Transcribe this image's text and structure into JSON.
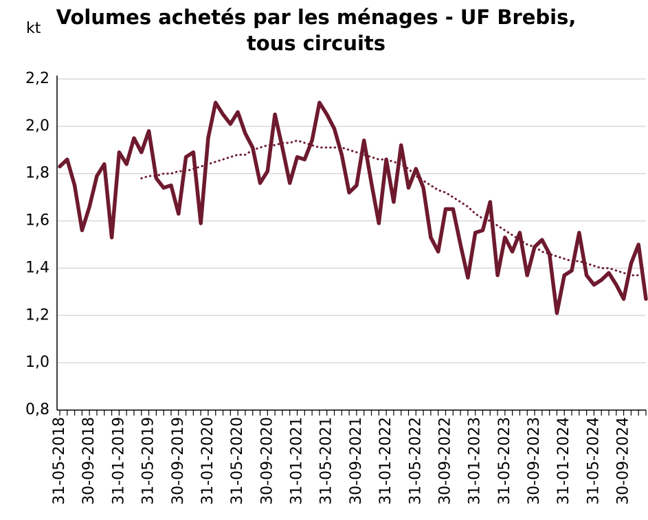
{
  "chart_data": {
    "type": "line",
    "title": "Volumes achetés par les ménages - UF Brebis, tous circuits",
    "y_label": "kt",
    "categories": [
      "31-05-2018",
      null,
      null,
      null,
      "30-09-2018",
      null,
      null,
      null,
      "31-01-2019",
      null,
      null,
      null,
      "31-05-2019",
      null,
      null,
      null,
      "30-09-2019",
      null,
      null,
      null,
      "31-01-2020",
      null,
      null,
      null,
      "31-05-2020",
      null,
      null,
      null,
      "30-09-2020",
      null,
      null,
      null,
      "31-01-2021",
      null,
      null,
      null,
      "31-05-2021",
      null,
      null,
      null,
      "30-09-2021",
      null,
      null,
      null,
      "31-01-2022",
      null,
      null,
      null,
      "31-05-2022",
      null,
      null,
      null,
      "30-09-2022",
      null,
      null,
      null,
      "31-01-2023",
      null,
      null,
      null,
      "31-05-2023",
      null,
      null,
      null,
      "30-09-2023",
      null,
      null,
      null,
      "31-01-2024",
      null,
      null,
      null,
      "31-05-2024",
      null,
      null,
      null,
      "30-09-2024",
      null,
      null,
      null
    ],
    "series": [
      {
        "color": "#6e1a2e",
        "style": "solid",
        "values": [
          1.83,
          1.86,
          1.75,
          1.56,
          1.66,
          1.79,
          1.84,
          1.53,
          1.89,
          1.84,
          1.95,
          1.89,
          1.98,
          1.78,
          1.74,
          1.75,
          1.63,
          1.87,
          1.89,
          1.59,
          1.95,
          2.1,
          2.05,
          2.01,
          2.06,
          1.97,
          1.91,
          1.76,
          1.81,
          2.05,
          1.91,
          1.76,
          1.87,
          1.86,
          1.94,
          2.1,
          2.05,
          1.99,
          1.88,
          1.72,
          1.75,
          1.94,
          1.76,
          1.59,
          1.86,
          1.68,
          1.92,
          1.74,
          1.82,
          1.74,
          1.53,
          1.47,
          1.65,
          1.65,
          1.5,
          1.36,
          1.55,
          1.56,
          1.68,
          1.37,
          1.53,
          1.47,
          1.55,
          1.37,
          1.49,
          1.52,
          1.46,
          1.21,
          1.37,
          1.39,
          1.55,
          1.37,
          1.33,
          1.35,
          1.38,
          1.33,
          1.27,
          1.42,
          1.5,
          1.27
        ]
      },
      {
        "color": "#6e1a2e",
        "style": "dotted",
        "values": [
          null,
          null,
          null,
          null,
          null,
          null,
          null,
          null,
          null,
          null,
          null,
          1.78,
          1.79,
          1.79,
          1.8,
          1.8,
          1.81,
          1.81,
          1.82,
          1.83,
          1.84,
          1.85,
          1.86,
          1.87,
          1.88,
          1.88,
          1.9,
          1.91,
          1.92,
          1.92,
          1.93,
          1.93,
          1.94,
          1.93,
          1.92,
          1.91,
          1.91,
          1.91,
          1.91,
          1.9,
          1.89,
          1.88,
          1.87,
          1.86,
          1.86,
          1.85,
          1.84,
          1.82,
          1.79,
          1.77,
          1.75,
          1.73,
          1.72,
          1.7,
          1.68,
          1.66,
          1.63,
          1.61,
          1.6,
          1.58,
          1.56,
          1.54,
          1.52,
          1.5,
          1.49,
          1.47,
          1.46,
          1.45,
          1.44,
          1.43,
          1.43,
          1.42,
          1.41,
          1.4,
          1.4,
          1.39,
          1.38,
          1.37,
          1.37,
          1.37
        ]
      }
    ],
    "ylim": [
      0.8,
      2.2
    ],
    "yticks": [
      {
        "value": 0.8,
        "label": "0,8"
      },
      {
        "value": 1.0,
        "label": "1,0"
      },
      {
        "value": 1.2,
        "label": "1,2"
      },
      {
        "value": 1.4,
        "label": "1,4"
      },
      {
        "value": 1.6,
        "label": "1,6"
      },
      {
        "value": 1.8,
        "label": "1,8"
      },
      {
        "value": 2.0,
        "label": "2,0"
      },
      {
        "value": 2.2,
        "label": "2,2"
      }
    ],
    "grid": true
  }
}
